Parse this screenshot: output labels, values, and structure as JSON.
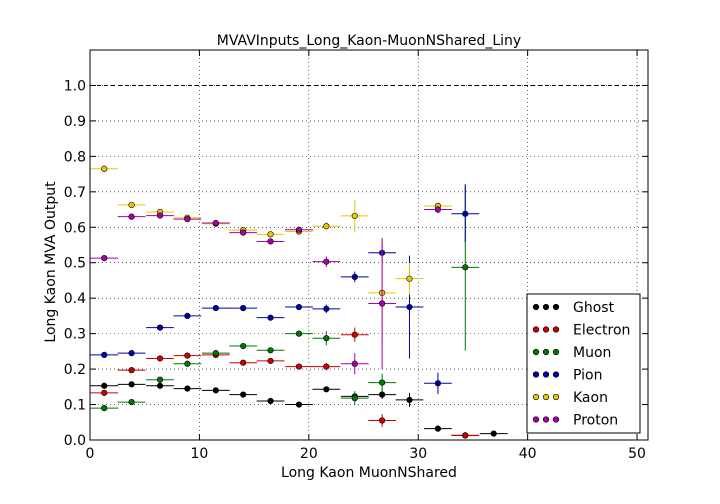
{
  "chart_data": {
    "type": "scatter",
    "title": "MVAVInputs_Long_Kaon-MuonNShared_Liny",
    "xlabel": "Long Kaon MuonNShared",
    "ylabel": "Long Kaon MVA Output",
    "xlim": [
      0,
      51
    ],
    "ylim": [
      0,
      1.1
    ],
    "x_ticks": [
      "0",
      "10",
      "20",
      "30",
      "40",
      "50"
    ],
    "y_ticks": [
      "0.0",
      "0.1",
      "0.2",
      "0.3",
      "0.4",
      "0.5",
      "0.6",
      "0.7",
      "0.8",
      "0.9",
      "1.0"
    ],
    "grid": true,
    "reference_line_y": 1.0,
    "x_half_bin_width": 1.27,
    "legend_position": "lower-right",
    "series": [
      {
        "name": "Ghost",
        "color": "#000000",
        "points": [
          [
            1.3,
            0.153,
            0.005
          ],
          [
            3.8,
            0.157,
            0.005
          ],
          [
            6.4,
            0.153,
            0.005
          ],
          [
            8.9,
            0.145,
            0.005
          ],
          [
            11.5,
            0.14,
            0.005
          ],
          [
            14.0,
            0.128,
            0.005
          ],
          [
            16.5,
            0.11,
            0.005
          ],
          [
            19.1,
            0.1,
            0.005
          ],
          [
            21.6,
            0.143,
            0.006
          ],
          [
            24.2,
            0.123,
            0.008
          ],
          [
            26.7,
            0.128,
            0.012
          ],
          [
            29.2,
            0.113,
            0.02
          ],
          [
            31.8,
            0.032,
            0.006
          ],
          [
            34.3,
            0.013,
            0.003
          ],
          [
            36.9,
            0.018,
            0.003
          ]
        ]
      },
      {
        "name": "Electron",
        "color": "#cc0000",
        "points": [
          [
            1.3,
            0.133,
            0.005
          ],
          [
            3.8,
            0.197,
            0.005
          ],
          [
            6.4,
            0.23,
            0.005
          ],
          [
            8.9,
            0.238,
            0.005
          ],
          [
            11.5,
            0.24,
            0.006
          ],
          [
            14.0,
            0.218,
            0.006
          ],
          [
            16.5,
            0.223,
            0.007
          ],
          [
            19.1,
            0.207,
            0.008
          ],
          [
            21.6,
            0.207,
            0.01
          ],
          [
            24.2,
            0.297,
            0.02
          ],
          [
            26.7,
            0.055,
            0.018
          ],
          [
            34.3,
            0.013,
            0.003
          ]
        ]
      },
      {
        "name": "Muon",
        "color": "#007700",
        "points": [
          [
            1.3,
            0.09,
            0.005
          ],
          [
            3.8,
            0.107,
            0.005
          ],
          [
            6.4,
            0.17,
            0.005
          ],
          [
            8.9,
            0.215,
            0.005
          ],
          [
            11.5,
            0.245,
            0.005
          ],
          [
            14.0,
            0.265,
            0.005
          ],
          [
            16.5,
            0.253,
            0.006
          ],
          [
            19.1,
            0.3,
            0.007
          ],
          [
            21.6,
            0.287,
            0.02
          ],
          [
            24.2,
            0.118,
            0.02
          ],
          [
            26.7,
            0.162,
            0.025
          ],
          [
            34.3,
            0.487,
            0.235
          ]
        ]
      },
      {
        "name": "Pion",
        "color": "#0000aa",
        "points": [
          [
            1.3,
            0.24,
            0.005
          ],
          [
            3.8,
            0.245,
            0.005
          ],
          [
            6.4,
            0.317,
            0.005
          ],
          [
            8.9,
            0.35,
            0.005
          ],
          [
            11.5,
            0.372,
            0.006
          ],
          [
            14.0,
            0.372,
            0.006
          ],
          [
            16.5,
            0.345,
            0.007
          ],
          [
            19.1,
            0.375,
            0.008
          ],
          [
            21.6,
            0.37,
            0.012
          ],
          [
            24.2,
            0.46,
            0.015
          ],
          [
            26.7,
            0.528,
            0.03
          ],
          [
            29.2,
            0.375,
            0.145
          ],
          [
            31.8,
            0.16,
            0.03
          ],
          [
            34.3,
            0.638,
            0.08
          ]
        ]
      },
      {
        "name": "Kaon",
        "color": "#e8c800",
        "points": [
          [
            1.3,
            0.765,
            0.005
          ],
          [
            3.8,
            0.663,
            0.005
          ],
          [
            6.4,
            0.643,
            0.005
          ],
          [
            8.9,
            0.627,
            0.005
          ],
          [
            11.5,
            0.61,
            0.005
          ],
          [
            14.0,
            0.592,
            0.005
          ],
          [
            16.5,
            0.58,
            0.006
          ],
          [
            19.1,
            0.588,
            0.008
          ],
          [
            21.6,
            0.603,
            0.012
          ],
          [
            24.2,
            0.632,
            0.045
          ],
          [
            26.7,
            0.415,
            0.15
          ],
          [
            29.2,
            0.455,
            0.045
          ],
          [
            31.8,
            0.66,
            0.01
          ]
        ]
      },
      {
        "name": "Proton",
        "color": "#aa00aa",
        "points": [
          [
            1.3,
            0.513,
            0.005
          ],
          [
            3.8,
            0.63,
            0.005
          ],
          [
            6.4,
            0.633,
            0.005
          ],
          [
            8.9,
            0.623,
            0.005
          ],
          [
            11.5,
            0.612,
            0.005
          ],
          [
            14.0,
            0.585,
            0.006
          ],
          [
            16.5,
            0.56,
            0.007
          ],
          [
            19.1,
            0.593,
            0.008
          ],
          [
            21.6,
            0.503,
            0.015
          ],
          [
            24.2,
            0.215,
            0.03
          ],
          [
            26.7,
            0.385,
            0.185
          ],
          [
            31.8,
            0.65,
            0.01
          ]
        ]
      }
    ]
  }
}
